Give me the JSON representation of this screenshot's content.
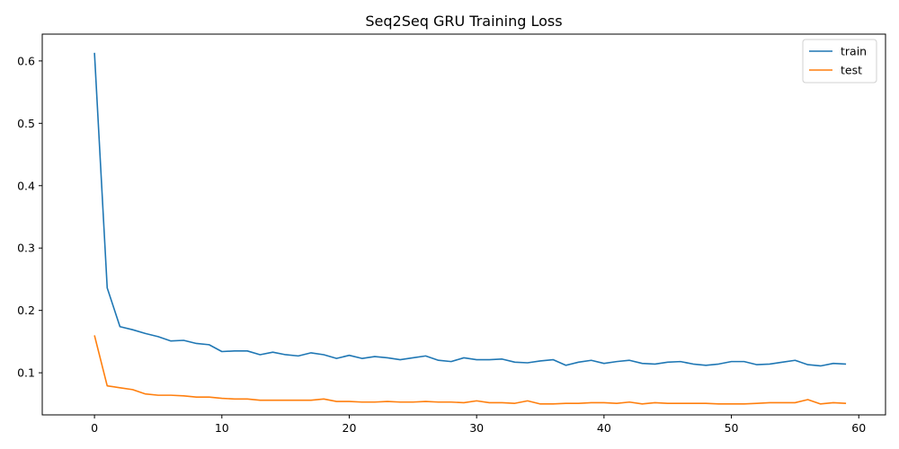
{
  "chart_data": {
    "type": "line",
    "title": "Seq2Seq GRU Training Loss",
    "xlabel": "",
    "ylabel": "",
    "xlim": [
      -4.1,
      62.1
    ],
    "ylim": [
      0.0325,
      0.643
    ],
    "xticks": [
      0,
      10,
      20,
      30,
      40,
      50,
      60
    ],
    "yticks": [
      0.1,
      0.2,
      0.3,
      0.4,
      0.5,
      0.6
    ],
    "grid": false,
    "legend_position": "top-right",
    "x": [
      0,
      1,
      2,
      3,
      4,
      5,
      6,
      7,
      8,
      9,
      10,
      11,
      12,
      13,
      14,
      15,
      16,
      17,
      18,
      19,
      20,
      21,
      22,
      23,
      24,
      25,
      26,
      27,
      28,
      29,
      30,
      31,
      32,
      33,
      34,
      35,
      36,
      37,
      38,
      39,
      40,
      41,
      42,
      43,
      44,
      45,
      46,
      47,
      48,
      49,
      50,
      51,
      52,
      53,
      54,
      55,
      56,
      57,
      58,
      59
    ],
    "series": [
      {
        "name": "train",
        "color": "#1f77b4",
        "values": [
          0.613,
          0.236,
          0.174,
          0.169,
          0.163,
          0.158,
          0.151,
          0.152,
          0.147,
          0.145,
          0.134,
          0.135,
          0.135,
          0.129,
          0.133,
          0.129,
          0.127,
          0.132,
          0.129,
          0.123,
          0.128,
          0.123,
          0.126,
          0.124,
          0.121,
          0.124,
          0.127,
          0.12,
          0.118,
          0.124,
          0.121,
          0.121,
          0.122,
          0.117,
          0.116,
          0.119,
          0.121,
          0.112,
          0.117,
          0.12,
          0.115,
          0.118,
          0.12,
          0.115,
          0.114,
          0.117,
          0.118,
          0.114,
          0.112,
          0.114,
          0.118,
          0.118,
          0.113,
          0.114,
          0.117,
          0.12,
          0.113,
          0.111,
          0.115,
          0.114
        ]
      },
      {
        "name": "test",
        "color": "#ff7f0e",
        "values": [
          0.16,
          0.079,
          0.076,
          0.073,
          0.066,
          0.064,
          0.064,
          0.063,
          0.061,
          0.061,
          0.059,
          0.058,
          0.058,
          0.056,
          0.056,
          0.056,
          0.056,
          0.056,
          0.058,
          0.054,
          0.054,
          0.053,
          0.053,
          0.054,
          0.053,
          0.053,
          0.054,
          0.053,
          0.053,
          0.052,
          0.055,
          0.052,
          0.052,
          0.051,
          0.055,
          0.05,
          0.05,
          0.051,
          0.051,
          0.052,
          0.052,
          0.051,
          0.053,
          0.05,
          0.052,
          0.051,
          0.051,
          0.051,
          0.051,
          0.05,
          0.05,
          0.05,
          0.051,
          0.052,
          0.052,
          0.052,
          0.057,
          0.05,
          0.052,
          0.051
        ]
      }
    ]
  }
}
